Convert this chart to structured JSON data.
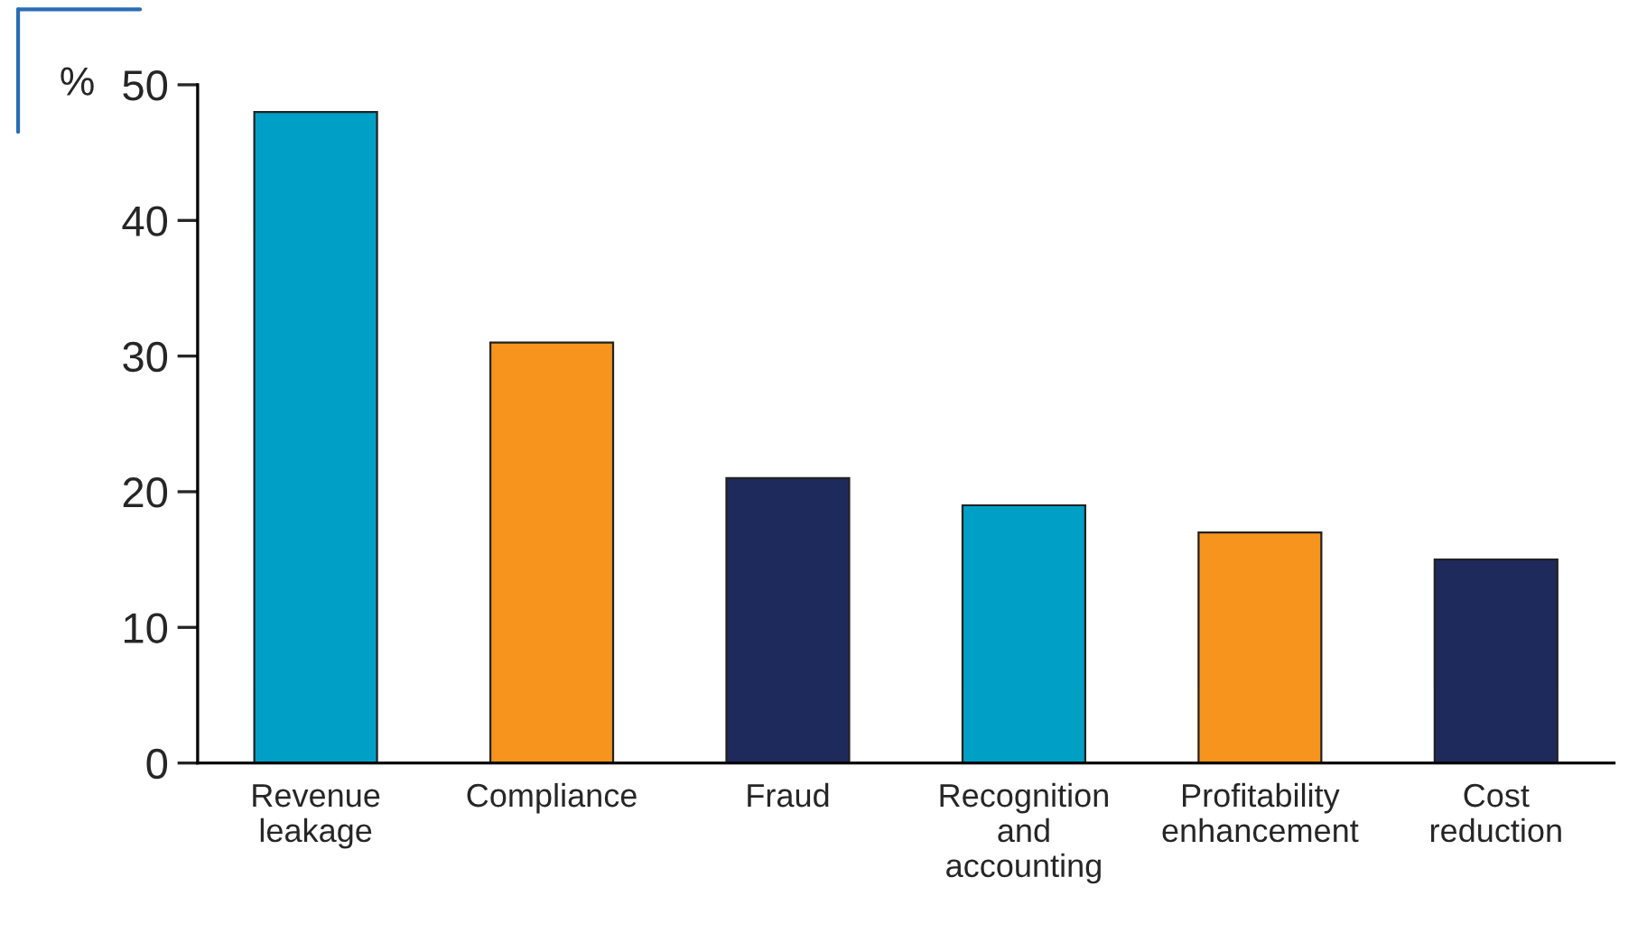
{
  "chart_data": {
    "type": "bar",
    "ylabel": "%",
    "categories": [
      "Revenue\nleakage",
      "Compliance",
      "Fraud",
      "Recognition\nand\naccounting",
      "Profitability\nenhancement",
      "Cost\nreduction"
    ],
    "values": [
      48,
      31,
      21,
      19,
      17,
      15
    ],
    "colors": [
      "#00a0c6",
      "#f7941d",
      "#1f2a5c",
      "#00a0c6",
      "#f7941d",
      "#1f2a5c"
    ],
    "ylim": [
      0,
      50
    ],
    "yticks": [
      0,
      10,
      20,
      30,
      40,
      50
    ],
    "grid": false,
    "legend": false
  }
}
